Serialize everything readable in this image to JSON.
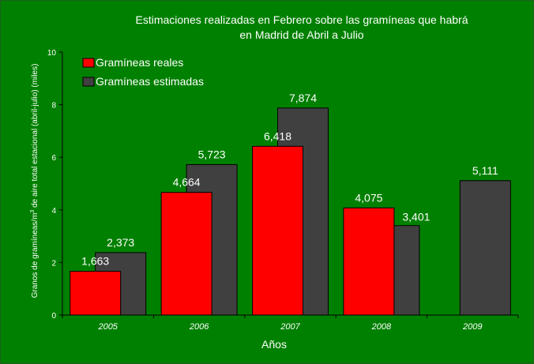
{
  "chart_data": {
    "type": "bar",
    "title_line1": "Estimaciones realizadas en Febrero sobre las gramíneas que habrá",
    "title_line2": "en Madrid de Abril a Julio",
    "xlabel": "Años",
    "ylabel_pre": "Granos de gramíneas/m",
    "ylabel_sup": "3",
    "ylabel_post": " de aire total estacional (abril-julio) (miles)",
    "ylim": [
      0,
      10
    ],
    "yticks": [
      "0",
      "2",
      "4",
      "6",
      "8",
      "10"
    ],
    "categories": [
      "2005",
      "2006",
      "2007",
      "2008",
      "2009"
    ],
    "series": [
      {
        "name": "Gramíneas reales",
        "color": "#ff0000",
        "values": [
          1.663,
          4.664,
          6.418,
          4.075,
          null
        ],
        "labels": [
          "1,663",
          "4,664",
          "6,418",
          "4,075",
          ""
        ]
      },
      {
        "name": "Gramíneas estimadas",
        "color": "#404040",
        "values": [
          2.373,
          5.723,
          7.874,
          3.401,
          5.111
        ],
        "labels": [
          "2,373",
          "5,723",
          "7,874",
          "3,401",
          "5,111"
        ]
      }
    ],
    "grid": false,
    "legend_position": "top-left",
    "background_color": "#008000"
  }
}
